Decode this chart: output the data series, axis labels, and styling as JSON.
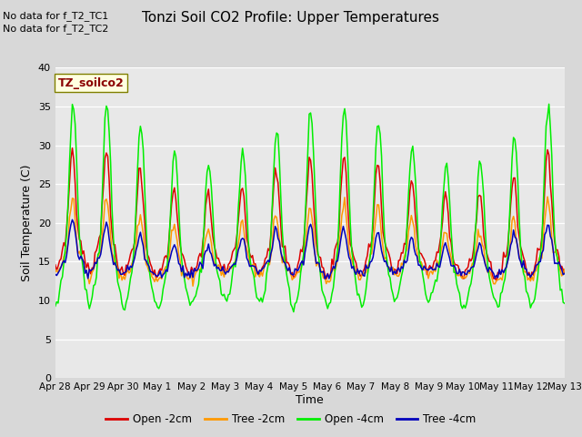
{
  "title": "Tonzi Soil CO2 Profile: Upper Temperatures",
  "xlabel": "Time",
  "ylabel": "Soil Temperature (C)",
  "annotations": [
    "No data for f_T2_TC1",
    "No data for f_T2_TC2"
  ],
  "legend_label": "TZ_soilco2",
  "ylim": [
    0,
    40
  ],
  "yticks": [
    0,
    5,
    10,
    15,
    20,
    25,
    30,
    35,
    40
  ],
  "series": {
    "open_2cm": {
      "color": "#dd0000",
      "label": "Open -2cm"
    },
    "tree_2cm": {
      "color": "#ff9900",
      "label": "Tree -2cm"
    },
    "open_4cm": {
      "color": "#00ee00",
      "label": "Open -4cm"
    },
    "tree_4cm": {
      "color": "#0000bb",
      "label": "Tree -4cm"
    }
  },
  "background_color": "#d8d8d8",
  "plot_bg_color": "#e8e8e8",
  "tick_labels": [
    "Apr 28",
    "Apr 29",
    "Apr 30",
    "May 1",
    "May 2",
    "May 3",
    "May 4",
    "May 5",
    "May 6",
    "May 7",
    "May 8",
    "May 9",
    "May 10",
    "May 11",
    "May 12",
    "May 13"
  ],
  "n_days": 15,
  "n_pts": 360
}
